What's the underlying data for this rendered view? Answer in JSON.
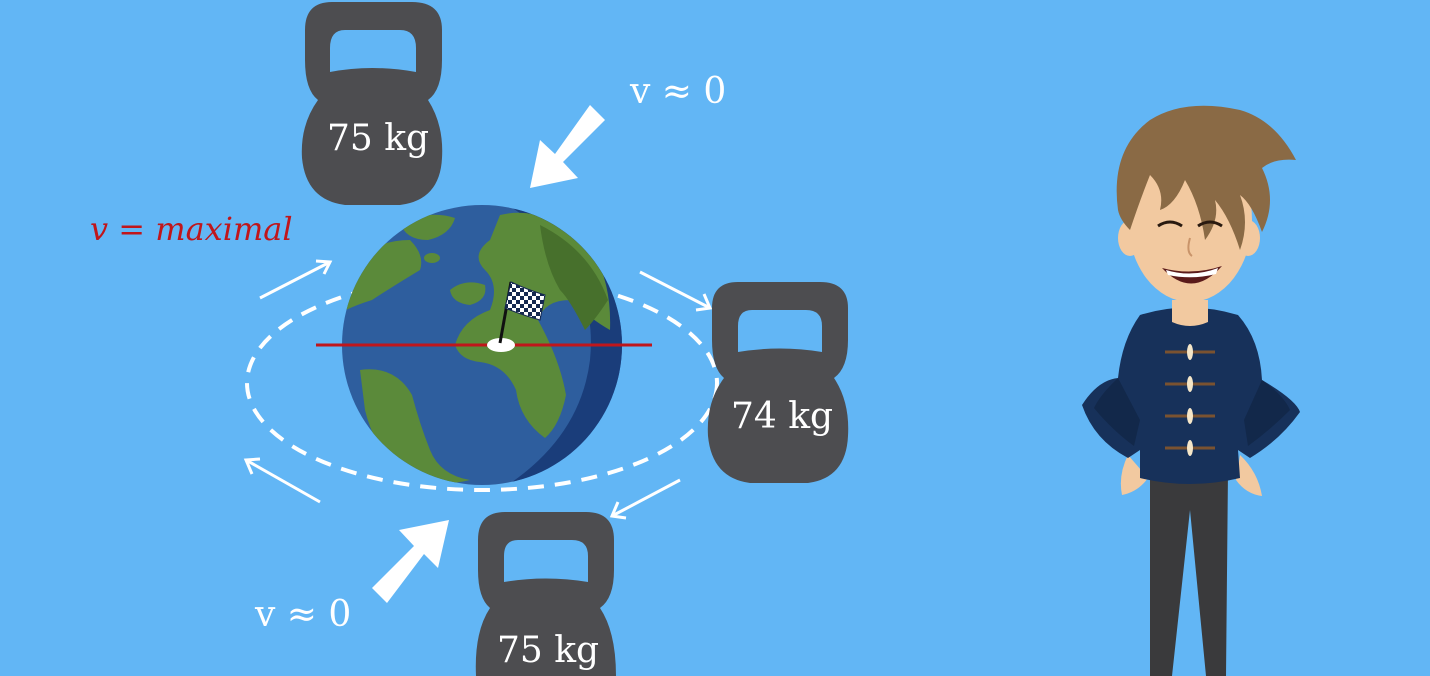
{
  "background_color": "#62b6f5",
  "weights": {
    "top": "75 kg",
    "right": "74 kg",
    "bottom": "75 kg"
  },
  "labels": {
    "velocity_top": "v ≈ 0",
    "velocity_bottom": "v ≈ 0",
    "velocity_equator": "v  =  maximal"
  },
  "colors": {
    "kettlebell": "#4d4d50",
    "ocean": "#2e5e9e",
    "ocean_shadow": "#1a3d7a",
    "land": "#5b8a3a",
    "equator_line": "#c0161b",
    "velocity_equator_text": "#c0161b",
    "arrows": "#ffffff"
  },
  "icons": [
    "checkered-flag-icon",
    "earth-globe",
    "kettlebell",
    "orbit-arrow",
    "boy-character"
  ]
}
